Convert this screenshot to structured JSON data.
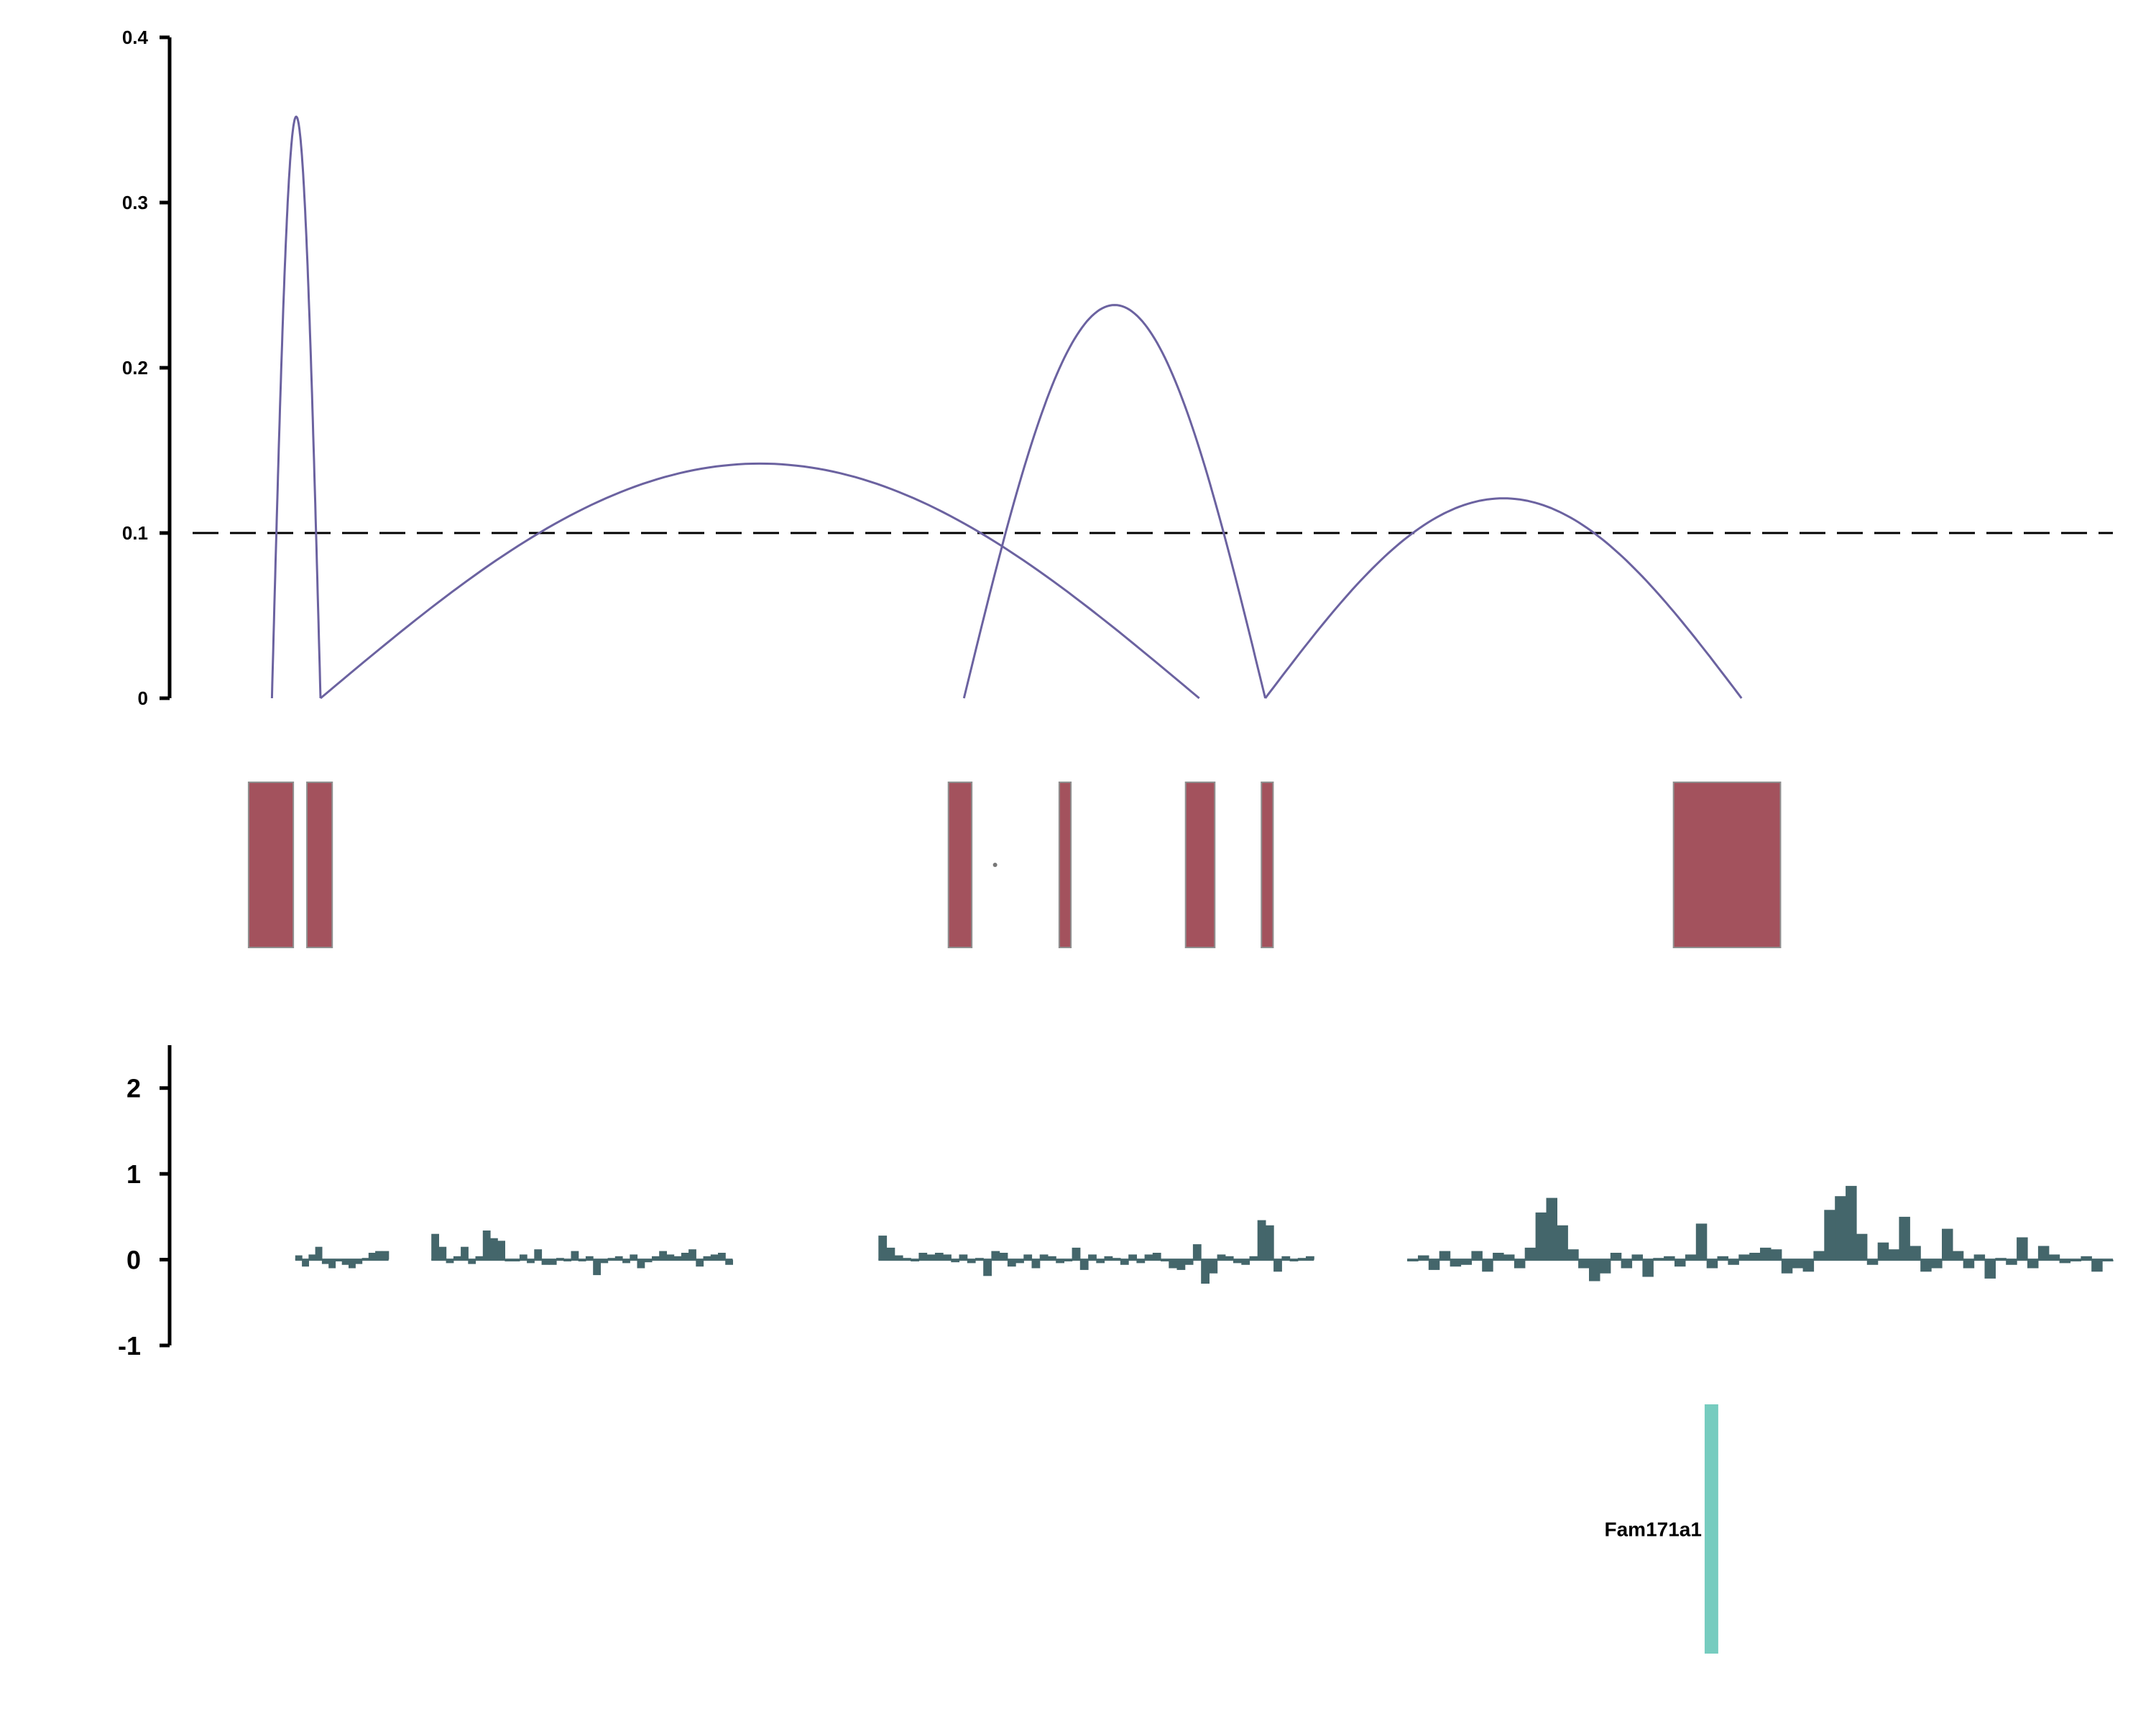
{
  "colors": {
    "arc": "#6b62a0",
    "feature_box": "#a3525d",
    "feature_box_edge": "#8f8f8f",
    "score_bar": "#44666b",
    "gene": "#76ccbf",
    "axis": "#000000",
    "threshold": "#000000"
  },
  "chart_data": [
    {
      "type": "line",
      "panel": "arcs",
      "y_ticks": [
        "0",
        "0.1",
        "0.2",
        "0.3",
        "0.4"
      ],
      "ylim": [
        0,
        0.4
      ],
      "threshold": 0.1,
      "threshold_style": "dashed",
      "grid": false,
      "arcs": [
        {
          "start": 0.053,
          "end": 0.078,
          "peak": 0.352
        },
        {
          "start": 0.078,
          "end": 0.53,
          "peak": 0.142
        },
        {
          "start": 0.409,
          "end": 0.564,
          "peak": 0.238
        },
        {
          "start": 0.564,
          "end": 0.809,
          "peak": 0.121
        }
      ]
    },
    {
      "type": "bar",
      "panel": "features",
      "boxes": [
        {
          "start": 0.041,
          "end": 0.064
        },
        {
          "start": 0.071,
          "end": 0.084
        },
        {
          "start": 0.401,
          "end": 0.413
        },
        {
          "start": 0.458,
          "end": 0.464
        },
        {
          "start": 0.523,
          "end": 0.538
        },
        {
          "start": 0.562,
          "end": 0.568
        },
        {
          "start": 0.774,
          "end": 0.829
        }
      ],
      "dots": [
        0.425
      ]
    },
    {
      "type": "bar",
      "panel": "scores",
      "y_ticks": [
        "2",
        "1",
        "0",
        "-1"
      ],
      "ylim": [
        -1,
        2.5
      ],
      "grid": false,
      "segments": [
        {
          "start": 0.065,
          "end": 0.113,
          "values": [
            0.05,
            -0.08,
            0.06,
            0.15,
            -0.05,
            -0.1,
            -0.02,
            -0.06,
            -0.1,
            -0.05,
            0.02,
            0.08,
            0.1,
            0.1
          ]
        },
        {
          "start": 0.135,
          "end": 0.29,
          "values": [
            0.3,
            0.15,
            -0.04,
            0.04,
            0.15,
            -0.05,
            0.04,
            0.34,
            0.25,
            0.22,
            -0.02,
            -0.02,
            0.06,
            -0.04,
            0.12,
            -0.06,
            -0.06,
            0.02,
            -0.02,
            0.1,
            -0.02,
            0.04,
            -0.18,
            -0.04,
            0.02,
            0.04,
            -0.04,
            0.06,
            -0.1,
            -0.03,
            0.04,
            0.1,
            0.06,
            0.04,
            0.08,
            0.12,
            -0.08,
            0.04,
            0.06,
            0.08,
            -0.06
          ]
        },
        {
          "start": 0.365,
          "end": 0.589,
          "values": [
            0.28,
            0.14,
            0.05,
            0.02,
            -0.02,
            0.08,
            0.06,
            0.08,
            0.06,
            -0.03,
            0.06,
            -0.04,
            0.02,
            -0.19,
            0.1,
            0.08,
            -0.08,
            -0.04,
            0.06,
            -0.1,
            0.06,
            0.04,
            -0.04,
            -0.02,
            0.14,
            -0.12,
            0.06,
            -0.04,
            0.04,
            0.02,
            -0.06,
            0.06,
            -0.04,
            0.06,
            0.08,
            -0.02,
            -0.1,
            -0.12,
            -0.06,
            0.18,
            -0.28,
            -0.16,
            0.06,
            0.04,
            -0.04,
            -0.06,
            0.04,
            0.46,
            0.4,
            -0.14,
            0.04,
            -0.02,
            0.02,
            0.04
          ]
        },
        {
          "start": 0.637,
          "end": 1.0,
          "values": [
            -0.02,
            0.05,
            -0.12,
            0.1,
            -0.08,
            -0.06,
            0.1,
            -0.14,
            0.08,
            0.06,
            -0.1,
            0.14,
            0.55,
            0.72,
            0.4,
            0.12,
            -0.1,
            -0.25,
            -0.16,
            0.08,
            -0.1,
            0.06,
            -0.2,
            0.02,
            0.04,
            -0.08,
            0.06,
            0.42,
            -0.1,
            0.04,
            -0.06,
            0.06,
            0.08,
            0.14,
            0.12,
            -0.16,
            -0.1,
            -0.14,
            0.1,
            0.58,
            0.74,
            0.86,
            0.3,
            -0.06,
            0.2,
            0.12,
            0.5,
            0.16,
            -0.14,
            -0.1,
            0.36,
            0.1,
            -0.1,
            0.06,
            -0.22,
            0.02,
            -0.06,
            0.26,
            -0.1,
            0.16,
            0.06,
            -0.04,
            -0.02,
            0.04,
            -0.14,
            -0.02
          ]
        }
      ]
    },
    {
      "type": "bar",
      "panel": "genes",
      "genes": [
        {
          "label": "Fam171a1",
          "start": 0.79,
          "end": 0.797
        }
      ]
    }
  ]
}
